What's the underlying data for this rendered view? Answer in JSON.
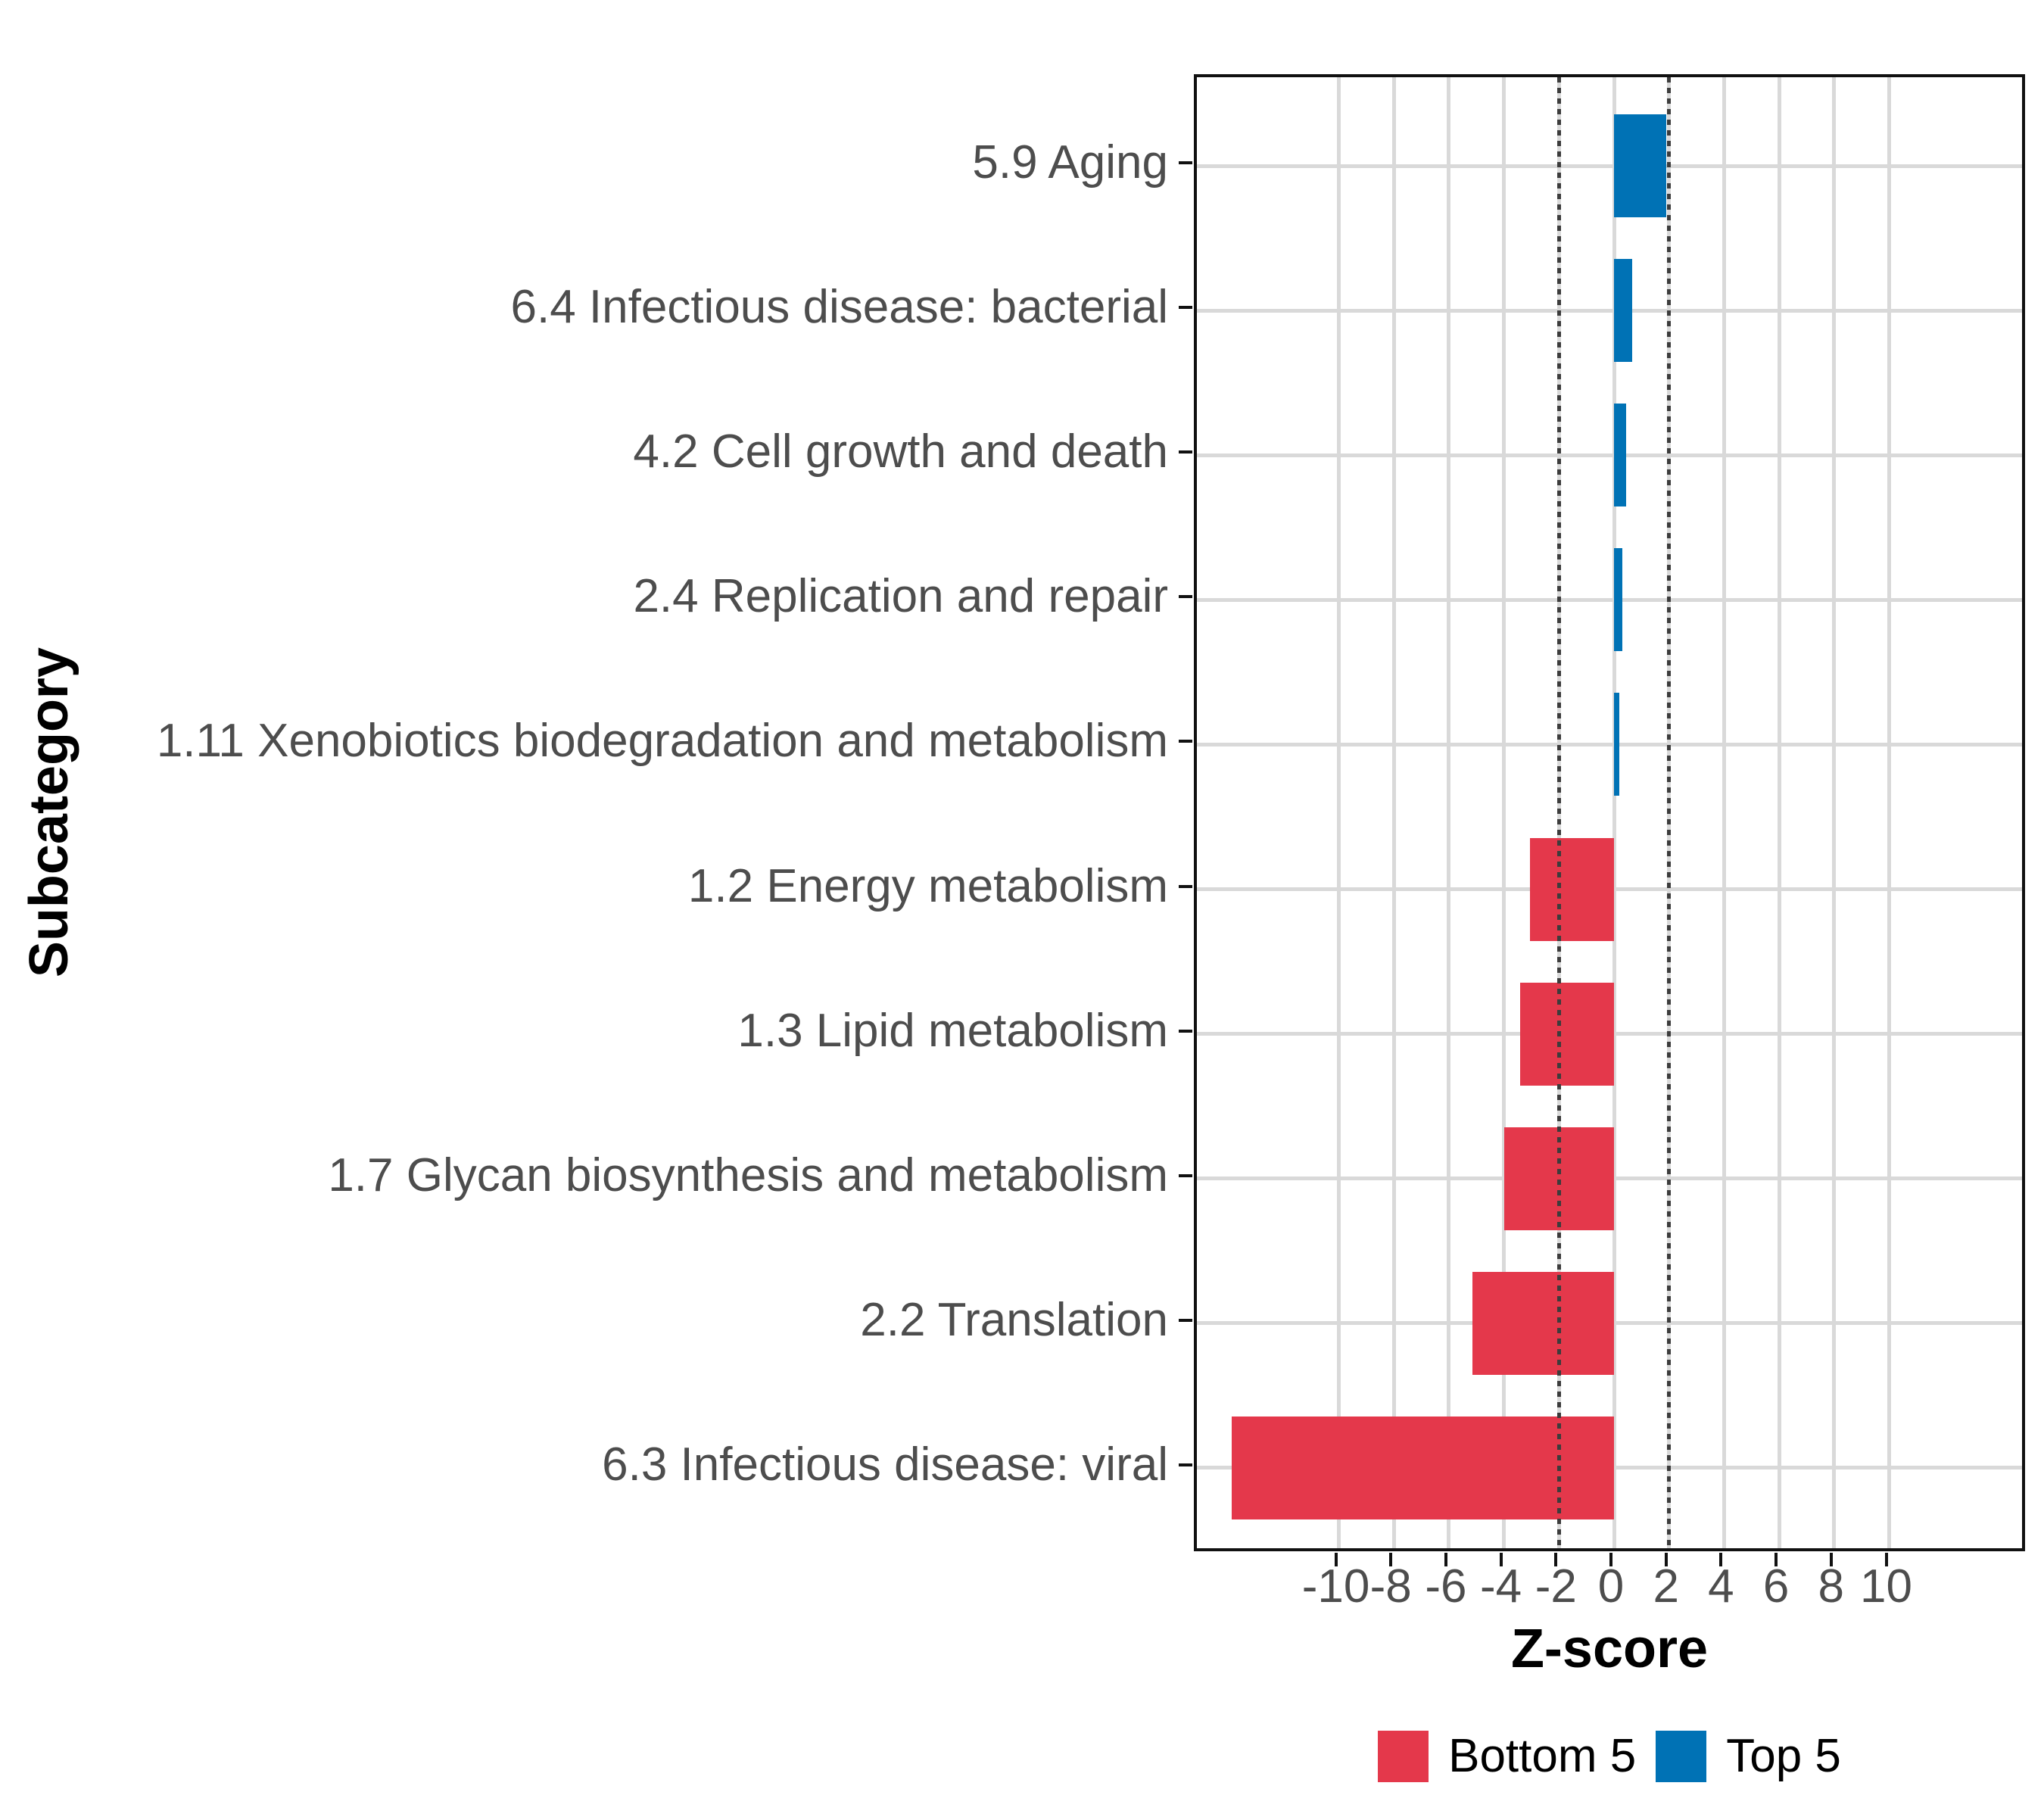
{
  "figure": {
    "background": "#FFFFFF",
    "panel_border_color": "#111111",
    "grid_color": "#D9D9D9",
    "reference_line_color": "#3C3C3C",
    "axis_text_color": "#4D4D4D",
    "title_color": "#000000"
  },
  "chart_data": {
    "type": "bar",
    "orientation": "horizontal",
    "title": "",
    "xlabel": "Z-score",
    "ylabel": "Subcategory",
    "xlim": [
      -15.2,
      15.1
    ],
    "x_ticks": [
      -10,
      -8,
      -6,
      -4,
      -2,
      0,
      2,
      4,
      6,
      8,
      10
    ],
    "reference_lines": [
      -2,
      2
    ],
    "grid": true,
    "legend_position": "bottom",
    "categories": [
      "5.9 Aging",
      "6.4 Infectious disease: bacterial",
      "4.2 Cell growth and death",
      "2.4 Replication and repair",
      "1.11 Xenobiotics biodegradation and metabolism",
      "1.2 Energy metabolism",
      "1.3 Lipid metabolism",
      "1.7 Glycan biosynthesis and metabolism",
      "2.2 Translation",
      "6.3 Infectious disease: viral"
    ],
    "bars": [
      {
        "category": "5.9 Aging",
        "value": 1.9,
        "group": "Top 5"
      },
      {
        "category": "6.4 Infectious disease: bacterial",
        "value": 0.65,
        "group": "Top 5"
      },
      {
        "category": "4.2 Cell growth and death",
        "value": 0.45,
        "group": "Top 5"
      },
      {
        "category": "2.4 Replication and repair",
        "value": 0.3,
        "group": "Top 5"
      },
      {
        "category": "1.11 Xenobiotics biodegradation and metabolism",
        "value": 0.2,
        "group": "Top 5"
      },
      {
        "category": "1.2 Energy metabolism",
        "value": -3.05,
        "group": "Bottom 5"
      },
      {
        "category": "1.3 Lipid metabolism",
        "value": -3.4,
        "group": "Bottom 5"
      },
      {
        "category": "1.7 Glycan biosynthesis and metabolism",
        "value": -4.0,
        "group": "Bottom 5"
      },
      {
        "category": "2.2 Translation",
        "value": -5.15,
        "group": "Bottom 5"
      },
      {
        "category": "6.3 Infectious disease: viral",
        "value": -13.9,
        "group": "Bottom 5"
      }
    ],
    "legend": [
      {
        "label": "Bottom 5",
        "color": "#E4384B"
      },
      {
        "label": "Top 5",
        "color": "#0072B5"
      }
    ]
  }
}
